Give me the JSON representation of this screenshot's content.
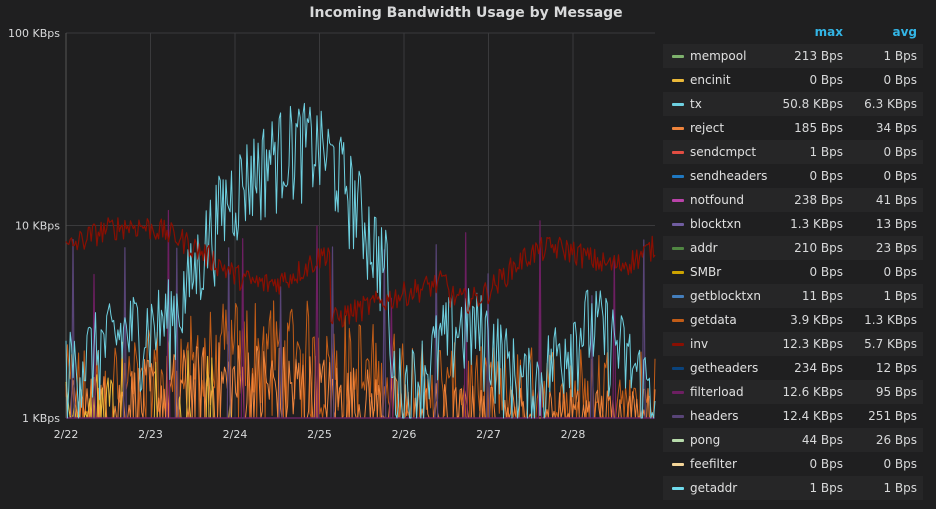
{
  "chart_data": {
    "type": "line",
    "title": "Incoming Bandwidth Usage by Message",
    "yscale": "log",
    "ylim": [
      "1 KBps",
      "100 KBps"
    ],
    "y_ticks": [
      "100 KBps",
      "10 KBps",
      "1 KBps"
    ],
    "x_ticks": [
      "2/22",
      "2/23",
      "2/24",
      "2/25",
      "2/26",
      "2/27",
      "2/28"
    ],
    "grid": true,
    "legend_placement": "right",
    "legend_columns": [
      "max",
      "avg"
    ],
    "series": [
      {
        "name": "mempool",
        "color": "#7eb26d",
        "max": "213 Bps",
        "avg": "1 Bps"
      },
      {
        "name": "encinit",
        "color": "#eab839",
        "max": "0 Bps",
        "avg": "0 Bps"
      },
      {
        "name": "tx",
        "color": "#6ed0e0",
        "max": "50.8 KBps",
        "avg": "6.3 KBps"
      },
      {
        "name": "reject",
        "color": "#ef843c",
        "max": "185 Bps",
        "avg": "34 Bps"
      },
      {
        "name": "sendcmpct",
        "color": "#e24d42",
        "max": "1 Bps",
        "avg": "0 Bps"
      },
      {
        "name": "sendheaders",
        "color": "#1f78c1",
        "max": "0 Bps",
        "avg": "0 Bps"
      },
      {
        "name": "notfound",
        "color": "#ba43a9",
        "max": "238 Bps",
        "avg": "41 Bps"
      },
      {
        "name": "blocktxn",
        "color": "#705da0",
        "max": "1.3 KBps",
        "avg": "13 Bps"
      },
      {
        "name": "addr",
        "color": "#508642",
        "max": "210 Bps",
        "avg": "23 Bps"
      },
      {
        "name": "SMBr",
        "color": "#cca300",
        "max": "0 Bps",
        "avg": "0 Bps"
      },
      {
        "name": "getblocktxn",
        "color": "#447ebc",
        "max": "11 Bps",
        "avg": "1 Bps"
      },
      {
        "name": "getdata",
        "color": "#c15c17",
        "max": "3.9 KBps",
        "avg": "1.3 KBps"
      },
      {
        "name": "inv",
        "color": "#890f02",
        "max": "12.3 KBps",
        "avg": "5.7 KBps"
      },
      {
        "name": "getheaders",
        "color": "#0a437c",
        "max": "234 Bps",
        "avg": "12 Bps"
      },
      {
        "name": "filterload",
        "color": "#6d1f62",
        "max": "12.6 KBps",
        "avg": "95 Bps"
      },
      {
        "name": "headers",
        "color": "#584477",
        "max": "12.4 KBps",
        "avg": "251 Bps"
      },
      {
        "name": "pong",
        "color": "#b7dbab",
        "max": "44 Bps",
        "avg": "26 Bps"
      },
      {
        "name": "feefilter",
        "color": "#f4d598",
        "max": "0 Bps",
        "avg": "0 Bps"
      },
      {
        "name": "getaddr",
        "color": "#70dbed",
        "max": "1 Bps",
        "avg": "1 Bps"
      }
    ]
  }
}
